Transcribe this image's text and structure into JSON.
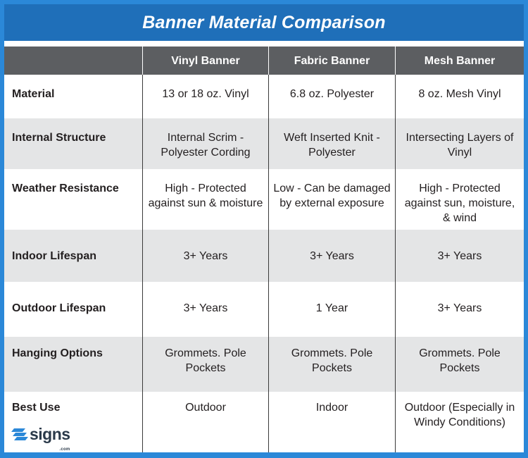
{
  "title": "Banner Material Comparison",
  "columns": [
    "Vinyl Banner",
    "Fabric Banner",
    "Mesh Banner"
  ],
  "rows": [
    {
      "label": "Material",
      "values": [
        "13 or 18 oz. Vinyl",
        "6.8 oz. Polyester",
        "8 oz. Mesh Vinyl"
      ]
    },
    {
      "label": "Internal Structure",
      "values": [
        "Internal Scrim - Polyester Cording",
        "Weft Inserted Knit - Polyester",
        "Intersecting Layers of Vinyl"
      ]
    },
    {
      "label": "Weather Resistance",
      "values": [
        "High - Protected against sun & moisture",
        "Low - Can be damaged by external exposure",
        "High - Protected against sun, moisture, & wind"
      ]
    },
    {
      "label": "Indoor Lifespan",
      "values": [
        "3+ Years",
        "3+ Years",
        "3+ Years"
      ]
    },
    {
      "label": "Outdoor Lifespan",
      "values": [
        "3+ Years",
        "1 Year",
        "3+ Years"
      ]
    },
    {
      "label": "Hanging Options",
      "values": [
        "Grommets. Pole Pockets",
        "Grommets. Pole Pockets",
        "Grommets. Pole Pockets"
      ]
    },
    {
      "label": "Best Use",
      "values": [
        "Outdoor",
        "Indoor",
        "Outdoor (Especially in Windy Conditions)"
      ]
    }
  ],
  "logo": {
    "word": "signs",
    "sub": ".com",
    "icon": "signs-logo-icon"
  },
  "colors": {
    "title_bar": "#1f6fb9",
    "border": "#2b88d8",
    "header_row": "#5c5e61",
    "shaded_row": "#e4e5e6",
    "logo_blue": "#2b88d8"
  }
}
